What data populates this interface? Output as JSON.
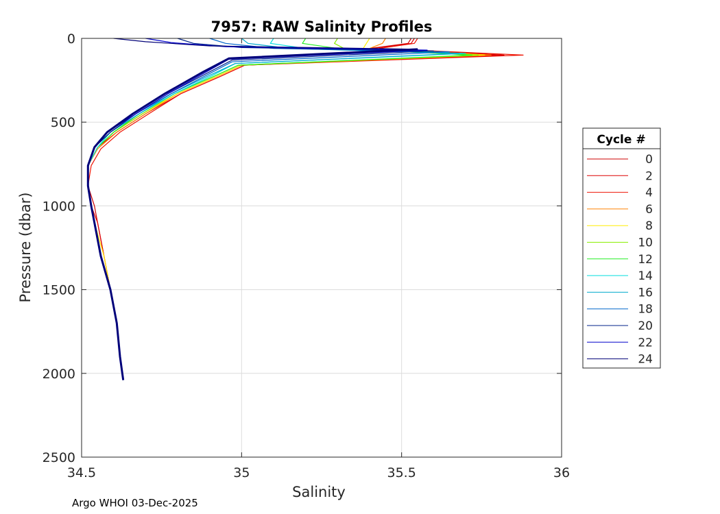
{
  "chart_data": {
    "type": "line",
    "title": "7957: RAW Salinity Profiles",
    "xlabel": "Salinity",
    "ylabel": "Pressure (dbar)",
    "xlim": [
      34.5,
      36
    ],
    "ylim": [
      0,
      2500
    ],
    "y_reversed": true,
    "xticks": [
      34.5,
      35,
      35.5,
      36
    ],
    "xtick_labels": [
      "34.5",
      "35",
      "35.5",
      "36"
    ],
    "yticks": [
      0,
      500,
      1000,
      1500,
      2000,
      2500
    ],
    "ytick_labels": [
      "0",
      "500",
      "1000",
      "1500",
      "2000",
      "2500"
    ],
    "grid": true,
    "legend": {
      "title": "Cycle #",
      "placement": "right"
    },
    "series": [
      {
        "name": "0",
        "color": "#cc0000",
        "points": [
          [
            35.53,
            0
          ],
          [
            35.52,
            30
          ],
          [
            35.4,
            60
          ],
          [
            35.82,
            100
          ],
          [
            35.0,
            160
          ],
          [
            34.92,
            230
          ],
          [
            34.8,
            330
          ],
          [
            34.69,
            450
          ],
          [
            34.6,
            560
          ],
          [
            34.55,
            650
          ],
          [
            34.52,
            760
          ],
          [
            34.52,
            880
          ],
          [
            34.54,
            1000
          ],
          [
            34.55,
            1100
          ],
          [
            34.57,
            1300
          ],
          [
            34.59,
            1500
          ],
          [
            34.61,
            1700
          ],
          [
            34.62,
            1900
          ],
          [
            34.63,
            2040
          ]
        ]
      },
      {
        "name": "2",
        "color": "#dd0000",
        "points": [
          [
            35.54,
            0
          ],
          [
            35.53,
            30
          ],
          [
            35.41,
            60
          ],
          [
            35.8,
            100
          ],
          [
            35.01,
            160
          ],
          [
            34.93,
            230
          ],
          [
            34.81,
            330
          ],
          [
            34.7,
            450
          ],
          [
            34.61,
            560
          ],
          [
            34.55,
            650
          ],
          [
            34.52,
            760
          ],
          [
            34.52,
            880
          ],
          [
            34.53,
            1000
          ],
          [
            34.55,
            1100
          ],
          [
            34.57,
            1300
          ],
          [
            34.59,
            1500
          ],
          [
            34.61,
            1700
          ],
          [
            34.62,
            1900
          ],
          [
            34.63,
            2040
          ]
        ]
      },
      {
        "name": "4",
        "color": "#ee1100",
        "points": [
          [
            35.55,
            0
          ],
          [
            35.54,
            30
          ],
          [
            35.43,
            60
          ],
          [
            35.88,
            100
          ],
          [
            35.01,
            160
          ],
          [
            34.93,
            230
          ],
          [
            34.81,
            330
          ],
          [
            34.71,
            450
          ],
          [
            34.62,
            560
          ],
          [
            34.56,
            660
          ],
          [
            34.53,
            760
          ],
          [
            34.52,
            880
          ],
          [
            34.53,
            1000
          ],
          [
            34.54,
            1100
          ],
          [
            34.56,
            1300
          ],
          [
            34.59,
            1500
          ],
          [
            34.61,
            1700
          ],
          [
            34.62,
            1900
          ],
          [
            34.63,
            2040
          ]
        ]
      },
      {
        "name": "6",
        "color": "#ff8000",
        "points": [
          [
            35.45,
            0
          ],
          [
            35.44,
            30
          ],
          [
            35.4,
            60
          ],
          [
            35.78,
            100
          ],
          [
            35.0,
            160
          ],
          [
            34.92,
            230
          ],
          [
            34.8,
            330
          ],
          [
            34.7,
            450
          ],
          [
            34.61,
            560
          ],
          [
            34.55,
            660
          ],
          [
            34.52,
            760
          ],
          [
            34.52,
            880
          ],
          [
            34.53,
            1000
          ],
          [
            34.54,
            1100
          ],
          [
            34.56,
            1300
          ],
          [
            34.59,
            1500
          ],
          [
            34.61,
            1700
          ],
          [
            34.62,
            1900
          ],
          [
            34.63,
            2040
          ]
        ]
      },
      {
        "name": "8",
        "color": "#ffee00",
        "points": [
          [
            35.4,
            0
          ],
          [
            35.39,
            30
          ],
          [
            35.38,
            60
          ],
          [
            35.76,
            100
          ],
          [
            35.0,
            160
          ],
          [
            34.92,
            230
          ],
          [
            34.8,
            330
          ],
          [
            34.69,
            450
          ],
          [
            34.6,
            560
          ],
          [
            34.55,
            650
          ],
          [
            34.52,
            760
          ],
          [
            34.52,
            880
          ],
          [
            34.53,
            1000
          ],
          [
            34.54,
            1100
          ],
          [
            34.57,
            1300
          ],
          [
            34.59,
            1500
          ],
          [
            34.61,
            1700
          ],
          [
            34.62,
            1900
          ],
          [
            34.63,
            2040
          ]
        ]
      },
      {
        "name": "10",
        "color": "#88ee00",
        "points": [
          [
            35.3,
            0
          ],
          [
            35.29,
            30
          ],
          [
            35.32,
            60
          ],
          [
            35.74,
            100
          ],
          [
            34.99,
            160
          ],
          [
            34.91,
            230
          ],
          [
            34.79,
            330
          ],
          [
            34.69,
            450
          ],
          [
            34.6,
            560
          ],
          [
            34.55,
            650
          ],
          [
            34.52,
            760
          ],
          [
            34.52,
            880
          ],
          [
            34.53,
            1000
          ],
          [
            34.54,
            1100
          ],
          [
            34.56,
            1300
          ],
          [
            34.59,
            1500
          ],
          [
            34.61,
            1700
          ],
          [
            34.62,
            1900
          ],
          [
            34.63,
            2040
          ]
        ]
      },
      {
        "name": "12",
        "color": "#22ee22",
        "points": [
          [
            35.2,
            0
          ],
          [
            35.19,
            30
          ],
          [
            35.3,
            60
          ],
          [
            35.72,
            100
          ],
          [
            34.99,
            160
          ],
          [
            34.91,
            230
          ],
          [
            34.79,
            330
          ],
          [
            34.68,
            450
          ],
          [
            34.6,
            560
          ],
          [
            34.55,
            650
          ],
          [
            34.52,
            760
          ],
          [
            34.52,
            880
          ],
          [
            34.53,
            1000
          ],
          [
            34.54,
            1100
          ],
          [
            34.56,
            1300
          ],
          [
            34.59,
            1500
          ],
          [
            34.61,
            1700
          ],
          [
            34.62,
            1900
          ],
          [
            34.63,
            2040
          ]
        ]
      },
      {
        "name": "14",
        "color": "#00dddd",
        "points": [
          [
            35.1,
            0
          ],
          [
            35.09,
            30
          ],
          [
            35.2,
            60
          ],
          [
            35.7,
            90
          ],
          [
            34.98,
            150
          ],
          [
            34.91,
            220
          ],
          [
            34.79,
            330
          ],
          [
            34.68,
            450
          ],
          [
            34.59,
            560
          ],
          [
            34.55,
            650
          ],
          [
            34.52,
            760
          ],
          [
            34.52,
            880
          ],
          [
            34.53,
            1000
          ],
          [
            34.54,
            1100
          ],
          [
            34.56,
            1300
          ],
          [
            34.59,
            1500
          ],
          [
            34.61,
            1700
          ],
          [
            34.62,
            1900
          ],
          [
            34.63,
            2040
          ]
        ]
      },
      {
        "name": "16",
        "color": "#00aacc",
        "points": [
          [
            35.0,
            0
          ],
          [
            35.02,
            30
          ],
          [
            35.15,
            60
          ],
          [
            35.68,
            90
          ],
          [
            34.98,
            150
          ],
          [
            34.9,
            220
          ],
          [
            34.78,
            330
          ],
          [
            34.68,
            450
          ],
          [
            34.59,
            560
          ],
          [
            34.54,
            650
          ],
          [
            34.52,
            760
          ],
          [
            34.52,
            880
          ],
          [
            34.53,
            1000
          ],
          [
            34.54,
            1100
          ],
          [
            34.56,
            1300
          ],
          [
            34.59,
            1500
          ],
          [
            34.61,
            1700
          ],
          [
            34.62,
            1900
          ],
          [
            34.63,
            2040
          ]
        ]
      },
      {
        "name": "18",
        "color": "#0066cc",
        "points": [
          [
            34.9,
            0
          ],
          [
            34.95,
            30
          ],
          [
            35.1,
            60
          ],
          [
            35.65,
            80
          ],
          [
            34.97,
            140
          ],
          [
            34.9,
            210
          ],
          [
            34.78,
            330
          ],
          [
            34.67,
            450
          ],
          [
            34.59,
            560
          ],
          [
            34.54,
            650
          ],
          [
            34.52,
            760
          ],
          [
            34.52,
            880
          ],
          [
            34.53,
            1000
          ],
          [
            34.54,
            1100
          ],
          [
            34.56,
            1300
          ],
          [
            34.59,
            1500
          ],
          [
            34.61,
            1700
          ],
          [
            34.62,
            1900
          ],
          [
            34.63,
            2040
          ]
        ]
      },
      {
        "name": "20",
        "color": "#002288",
        "points": [
          [
            34.8,
            0
          ],
          [
            34.85,
            30
          ],
          [
            35.0,
            55
          ],
          [
            35.6,
            75
          ],
          [
            34.97,
            130
          ],
          [
            34.89,
            210
          ],
          [
            34.77,
            330
          ],
          [
            34.67,
            450
          ],
          [
            34.59,
            560
          ],
          [
            34.54,
            650
          ],
          [
            34.52,
            760
          ],
          [
            34.52,
            880
          ],
          [
            34.53,
            1000
          ],
          [
            34.54,
            1100
          ],
          [
            34.56,
            1300
          ],
          [
            34.59,
            1500
          ],
          [
            34.61,
            1700
          ],
          [
            34.62,
            1900
          ],
          [
            34.63,
            2040
          ]
        ]
      },
      {
        "name": "22",
        "color": "#0000cc",
        "points": [
          [
            34.7,
            0
          ],
          [
            34.78,
            25
          ],
          [
            34.95,
            50
          ],
          [
            35.58,
            70
          ],
          [
            34.96,
            125
          ],
          [
            34.89,
            200
          ],
          [
            34.77,
            330
          ],
          [
            34.67,
            450
          ],
          [
            34.58,
            560
          ],
          [
            34.54,
            650
          ],
          [
            34.52,
            760
          ],
          [
            34.52,
            880
          ],
          [
            34.53,
            1000
          ],
          [
            34.54,
            1100
          ],
          [
            34.56,
            1300
          ],
          [
            34.59,
            1500
          ],
          [
            34.61,
            1700
          ],
          [
            34.62,
            1900
          ],
          [
            34.63,
            2040
          ]
        ]
      },
      {
        "name": "24",
        "color": "#000077",
        "points": [
          [
            34.6,
            0
          ],
          [
            34.7,
            20
          ],
          [
            34.9,
            45
          ],
          [
            35.55,
            65
          ],
          [
            34.96,
            120
          ],
          [
            34.88,
            200
          ],
          [
            34.76,
            330
          ],
          [
            34.66,
            450
          ],
          [
            34.58,
            560
          ],
          [
            34.54,
            650
          ],
          [
            34.52,
            760
          ],
          [
            34.52,
            880
          ],
          [
            34.53,
            1000
          ],
          [
            34.54,
            1100
          ],
          [
            34.56,
            1300
          ],
          [
            34.59,
            1500
          ],
          [
            34.61,
            1700
          ],
          [
            34.62,
            1900
          ],
          [
            34.63,
            2040
          ]
        ]
      }
    ]
  },
  "footer": "Argo WHOI 03-Dec-2025"
}
